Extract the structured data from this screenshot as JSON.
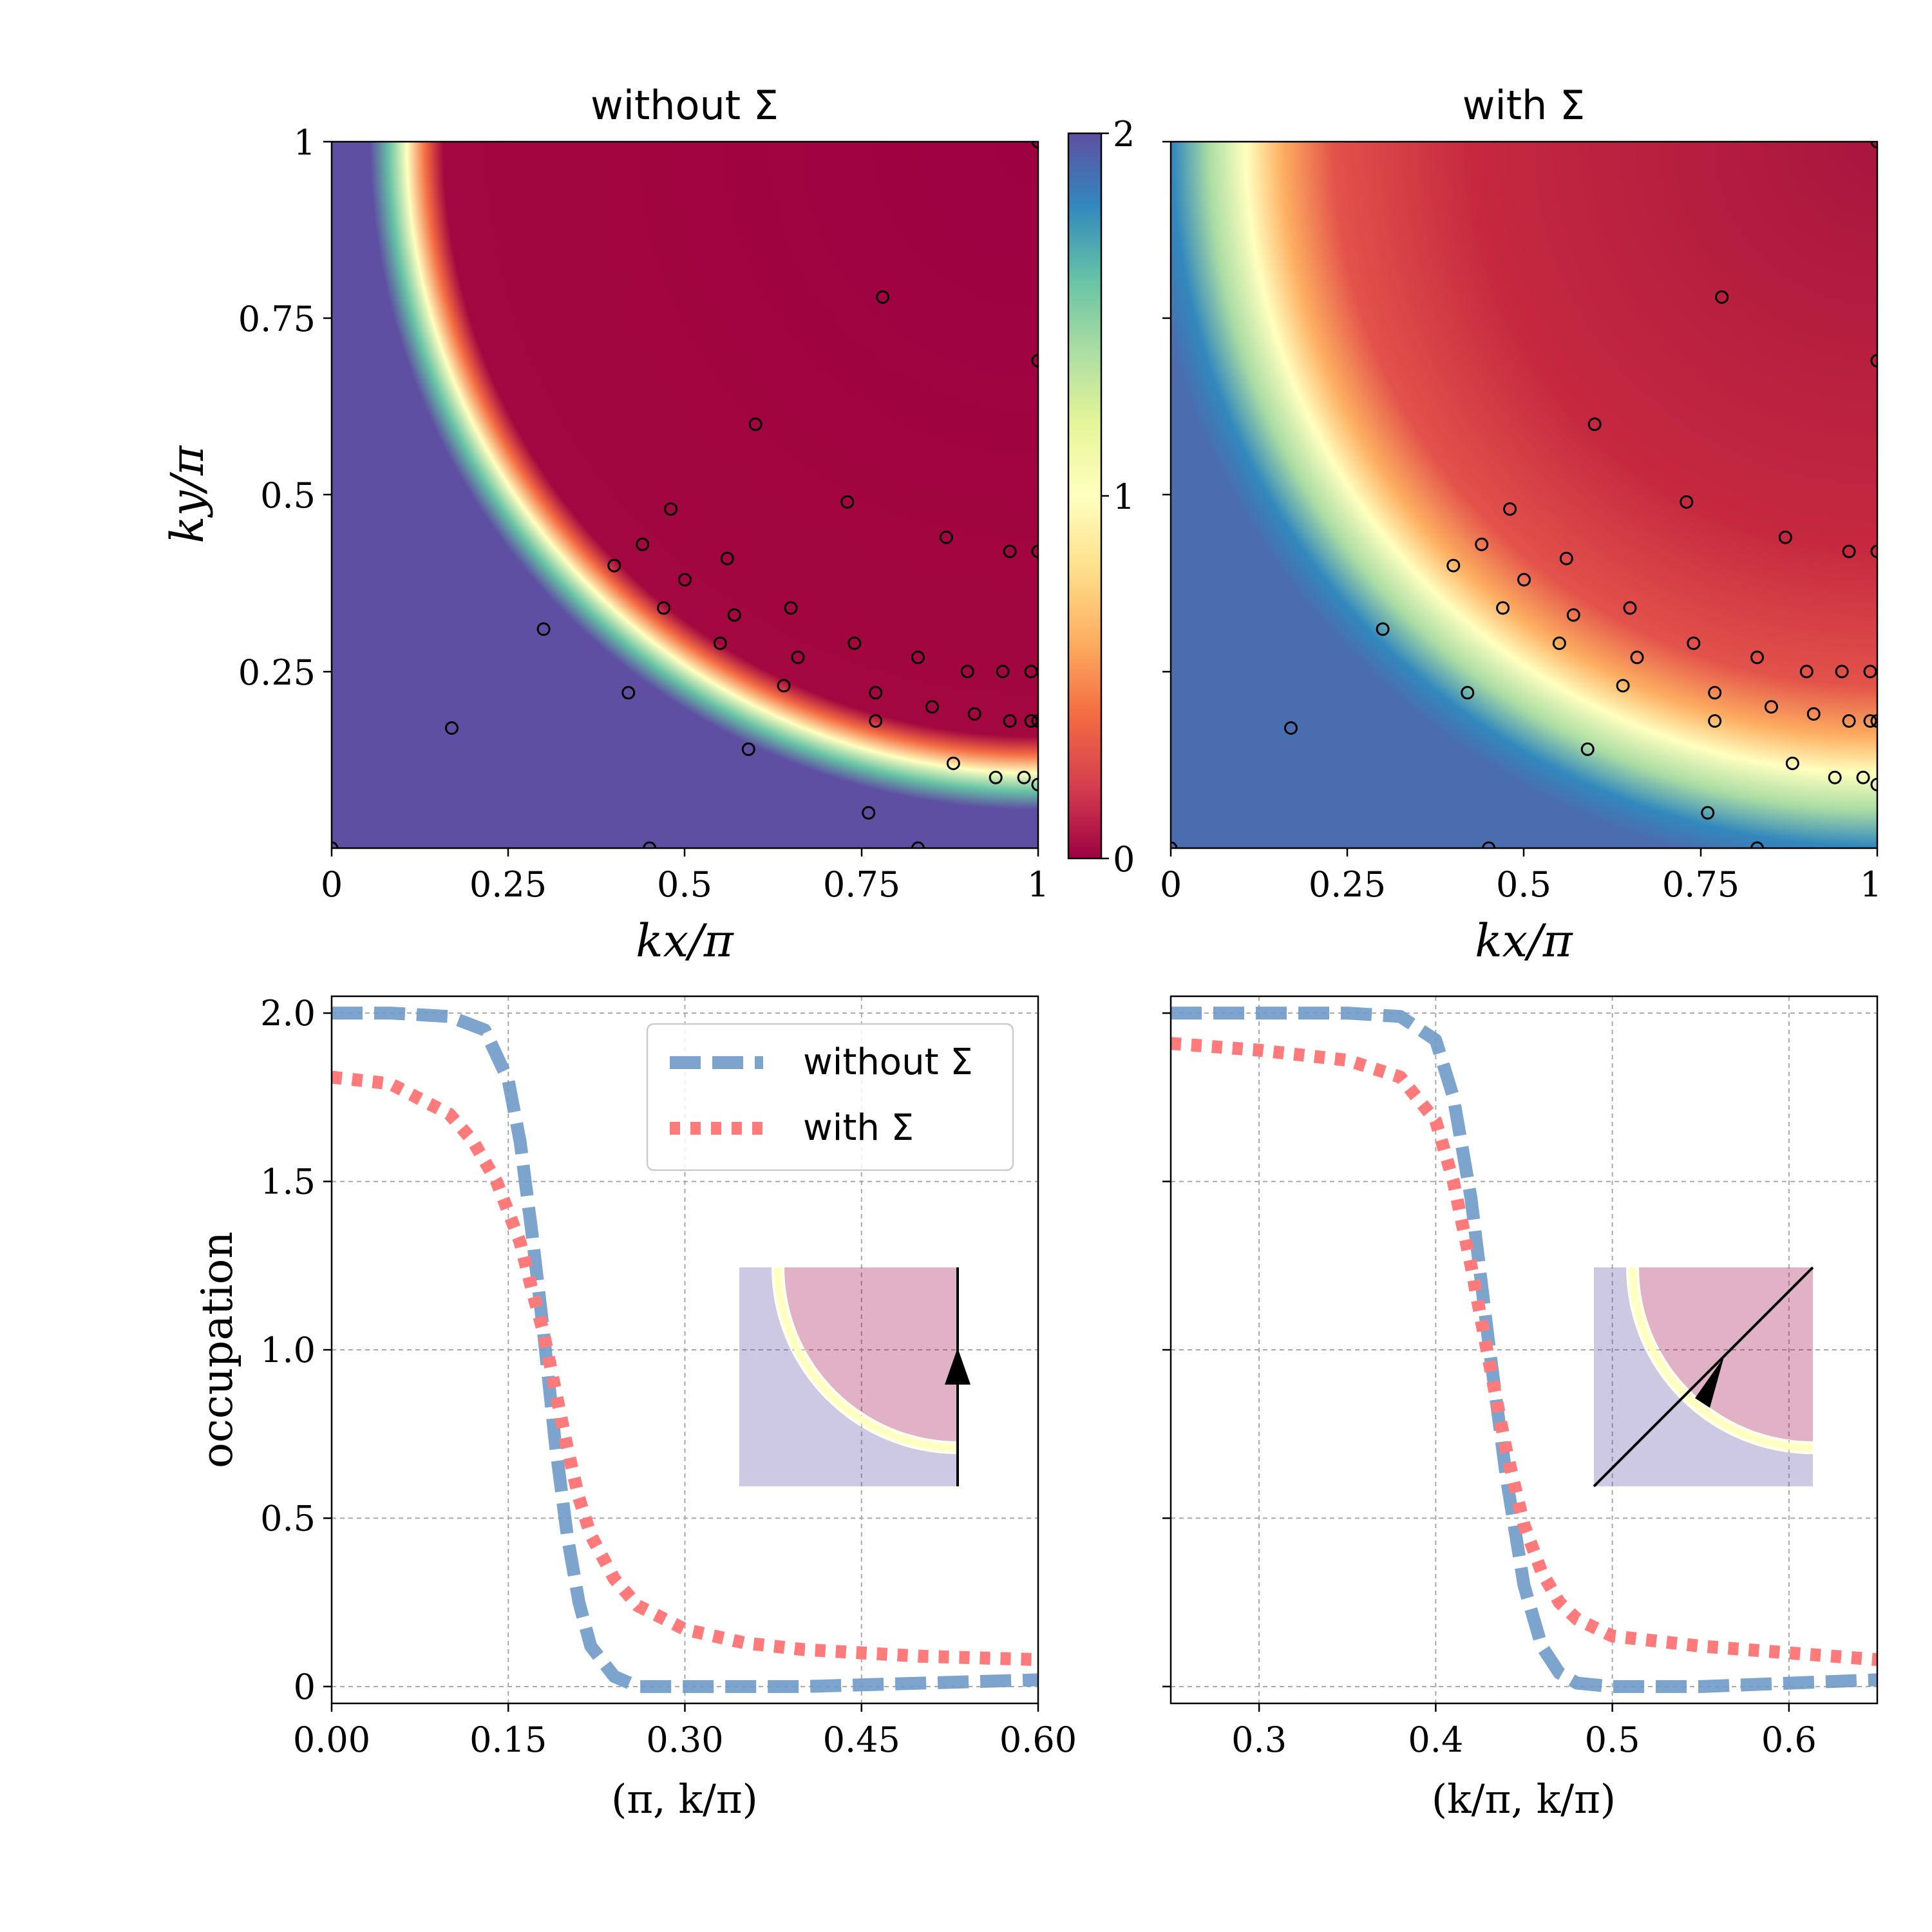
{
  "chart_data": [
    {
      "type": "heatmap",
      "title": "without Σ",
      "xlabel": "kx/π",
      "ylabel": "ky/π",
      "xlim": [
        0,
        1
      ],
      "ylim": [
        0,
        1
      ],
      "xticks": [
        "0",
        "0.25",
        "0.5",
        "0.75",
        "1"
      ],
      "yticks": [
        "0.25",
        "0.5",
        "0.75",
        "1"
      ],
      "colormap": "Spectral",
      "fermi_surface": {
        "kx_at_ky1": 0.18,
        "ky_at_kx1": 0.18
      },
      "occupation_inside": 1.85,
      "occupation_outside": 0.05,
      "colors": {
        "inside": "#5e4fa2",
        "outside": "#9e0142",
        "edge": "#ffffbf"
      }
    },
    {
      "type": "heatmap",
      "title": "with Σ",
      "xlabel": "kx/π",
      "xlim": [
        0,
        1
      ],
      "ylim": [
        0,
        1
      ],
      "xticks": [
        "0",
        "0.25",
        "0.5",
        "0.75",
        "1"
      ],
      "colormap": "Spectral",
      "colors": {
        "inside": "#3288bd",
        "outside": "#d53e4f",
        "edge": "#ffffbf"
      }
    },
    {
      "type": "colorbar",
      "range": [
        0,
        2
      ],
      "ticks": [
        "0",
        "1",
        "2"
      ]
    },
    {
      "type": "line",
      "xlabel": "(π, k/π)",
      "ylabel": "occupation",
      "xlim": [
        0,
        0.6
      ],
      "ylim": [
        -0.05,
        2.05
      ],
      "xticks": [
        "0.00",
        "0.15",
        "0.30",
        "0.45",
        "0.60"
      ],
      "yticks": [
        "0",
        "0.5",
        "1.0",
        "1.5",
        "2.0"
      ],
      "grid": true,
      "legend_position": "upper right",
      "series": [
        {
          "name": "without Σ",
          "style": "dashed",
          "color": "#6f9ac7",
          "x": [
            0.0,
            0.05,
            0.1,
            0.13,
            0.15,
            0.16,
            0.17,
            0.18,
            0.19,
            0.2,
            0.21,
            0.22,
            0.24,
            0.26,
            0.3,
            0.4,
            0.5,
            0.6
          ],
          "values": [
            2.0,
            2.0,
            1.99,
            1.95,
            1.8,
            1.62,
            1.35,
            1.05,
            0.72,
            0.45,
            0.25,
            0.12,
            0.03,
            0.0,
            0.0,
            0.0,
            0.01,
            0.02
          ]
        },
        {
          "name": "with Σ",
          "style": "dotted",
          "color": "#ff7a7a",
          "x": [
            0.0,
            0.05,
            0.1,
            0.12,
            0.14,
            0.16,
            0.17,
            0.18,
            0.19,
            0.2,
            0.21,
            0.22,
            0.24,
            0.26,
            0.3,
            0.35,
            0.4,
            0.5,
            0.6
          ],
          "values": [
            1.81,
            1.79,
            1.7,
            1.62,
            1.5,
            1.32,
            1.18,
            1.05,
            0.88,
            0.71,
            0.56,
            0.45,
            0.32,
            0.24,
            0.17,
            0.13,
            0.11,
            0.09,
            0.08
          ]
        }
      ]
    },
    {
      "type": "line",
      "xlabel": "(k/π, k/π)",
      "xlim": [
        0.25,
        0.65
      ],
      "ylim": [
        -0.05,
        2.05
      ],
      "xticks": [
        "0.3",
        "0.4",
        "0.5",
        "0.6"
      ],
      "grid": true,
      "series": [
        {
          "name": "without Σ",
          "style": "dashed",
          "color": "#6f9ac7",
          "x": [
            0.25,
            0.3,
            0.35,
            0.38,
            0.4,
            0.41,
            0.42,
            0.43,
            0.44,
            0.45,
            0.46,
            0.47,
            0.48,
            0.5,
            0.55,
            0.6,
            0.65
          ],
          "values": [
            2.0,
            2.0,
            2.0,
            1.99,
            1.92,
            1.75,
            1.45,
            1.02,
            0.62,
            0.3,
            0.12,
            0.04,
            0.01,
            0.0,
            0.0,
            0.01,
            0.02
          ]
        },
        {
          "name": "with Σ",
          "style": "dotted",
          "color": "#ff7a7a",
          "x": [
            0.25,
            0.3,
            0.35,
            0.38,
            0.4,
            0.41,
            0.42,
            0.43,
            0.44,
            0.45,
            0.46,
            0.47,
            0.48,
            0.5,
            0.55,
            0.6,
            0.65
          ],
          "values": [
            1.91,
            1.89,
            1.86,
            1.81,
            1.68,
            1.5,
            1.25,
            0.97,
            0.7,
            0.48,
            0.34,
            0.25,
            0.2,
            0.15,
            0.12,
            0.1,
            0.08
          ]
        }
      ]
    }
  ],
  "legend": {
    "without": "without Σ",
    "with": "with Σ"
  },
  "titles": {
    "left": "without Σ",
    "right": "with Σ"
  },
  "labels": {
    "kx": "kx/π",
    "ky": "ky/π",
    "occupation": "occupation",
    "path1": "(π, k/π)",
    "path2": "(k/π, k/π)"
  }
}
